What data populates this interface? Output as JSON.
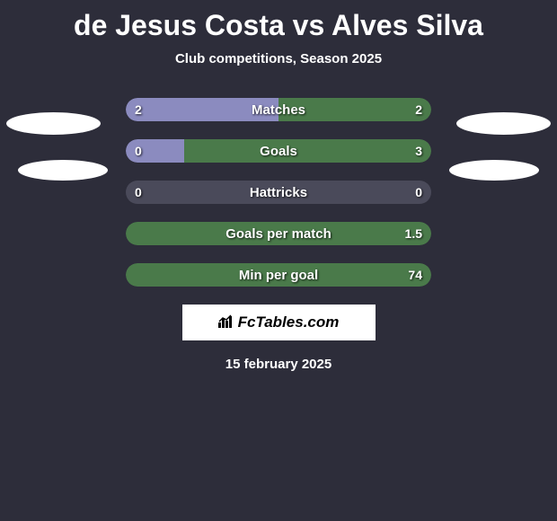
{
  "title": "de Jesus Costa vs Alves Silva",
  "subtitle": "Club competitions, Season 2025",
  "date": "15 february 2025",
  "branding": "FcTables.com",
  "colors": {
    "background": "#2d2d3a",
    "left_bar": "#8b8bbf",
    "right_bar": "#4a7a4a",
    "neutral_bar": "#4a4a5a",
    "text": "#ffffff"
  },
  "stats": [
    {
      "label": "Matches",
      "left_value": "2",
      "right_value": "2",
      "left_width": 170,
      "right_width": 170,
      "left_color": "#8b8bbf",
      "right_color": "#4a7a4a"
    },
    {
      "label": "Goals",
      "left_value": "0",
      "right_value": "3",
      "left_width": 65,
      "right_width": 275,
      "left_color": "#8b8bbf",
      "right_color": "#4a7a4a"
    },
    {
      "label": "Hattricks",
      "left_value": "0",
      "right_value": "0",
      "left_width": 0,
      "right_width": 0,
      "left_color": "#4a4a5a",
      "right_color": "#4a4a5a",
      "neutral": true
    },
    {
      "label": "Goals per match",
      "left_value": "",
      "right_value": "1.5",
      "left_width": 0,
      "right_width": 340,
      "left_color": "#8b8bbf",
      "right_color": "#4a7a4a"
    },
    {
      "label": "Min per goal",
      "left_value": "",
      "right_value": "74",
      "left_width": 0,
      "right_width": 340,
      "left_color": "#8b8bbf",
      "right_color": "#4a7a4a"
    }
  ]
}
